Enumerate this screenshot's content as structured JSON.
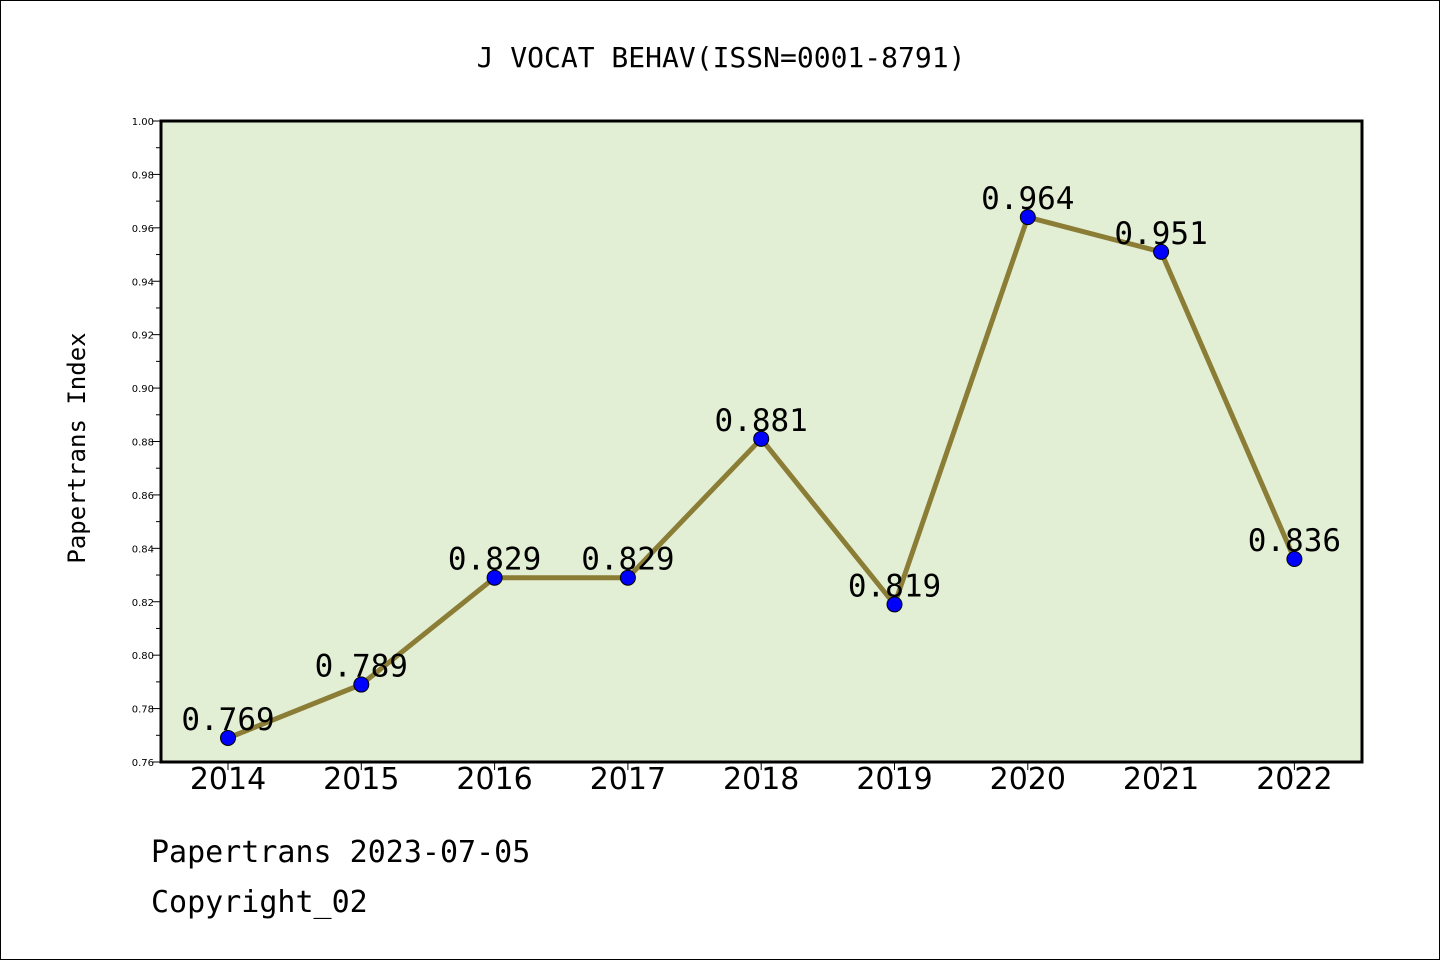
{
  "chart_data": {
    "type": "line",
    "title": "J VOCAT BEHAV(ISSN=0001-8791)",
    "ylabel": "Papertrans Index",
    "xlabel": "",
    "categories": [
      "2014",
      "2015",
      "2016",
      "2017",
      "2018",
      "2019",
      "2020",
      "2021",
      "2022"
    ],
    "values": [
      0.769,
      0.789,
      0.829,
      0.829,
      0.881,
      0.819,
      0.964,
      0.951,
      0.836
    ],
    "data_labels": [
      "0.769",
      "0.789",
      "0.829",
      "0.829",
      "0.881",
      "0.819",
      "0.964",
      "0.951",
      "0.836"
    ],
    "ylim": [
      0.76,
      1.0
    ],
    "yticks": [
      "0.76",
      "0.78",
      "0.80",
      "0.82",
      "0.84",
      "0.86",
      "0.88",
      "0.90",
      "0.92",
      "0.94",
      "0.96",
      "0.98",
      "1.00"
    ],
    "grid": false,
    "colors": {
      "plot_background": "#e2efd5",
      "line": "#8b7d35",
      "marker": "#0000ff"
    }
  },
  "footer": {
    "line1": "Papertrans 2023-07-05",
    "line2": "Copyright_02"
  }
}
